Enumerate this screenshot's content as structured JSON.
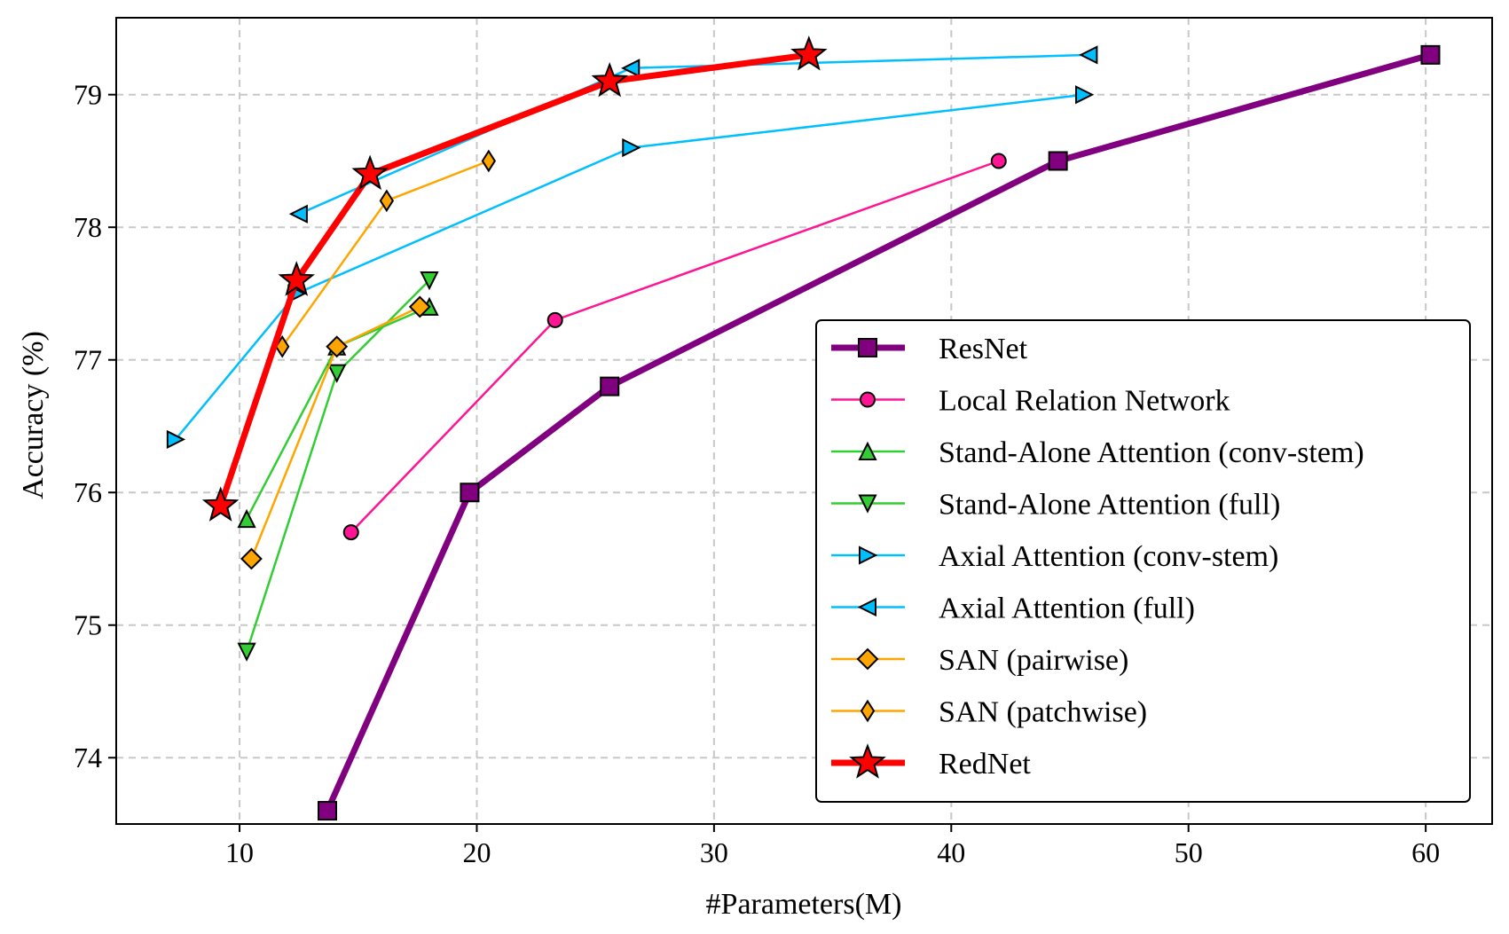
{
  "chart_data": {
    "type": "line",
    "title": "",
    "xlabel": "#Parameters(M)",
    "ylabel": "Accuracy (%)",
    "xlim": [
      4.8,
      62.8
    ],
    "ylim": [
      73.5,
      79.58
    ],
    "xticks": [
      10,
      20,
      30,
      40,
      50,
      60
    ],
    "yticks": [
      74,
      75,
      76,
      77,
      78,
      79
    ],
    "grid": true,
    "legend_position": "lower-right",
    "series": [
      {
        "name": "ResNet",
        "color": "#800080",
        "marker": "square",
        "marker_fill": "#800080",
        "line_weight": "heavy",
        "x": [
          13.7,
          19.7,
          25.6,
          44.5,
          60.2
        ],
        "y": [
          73.6,
          76.0,
          76.8,
          78.5,
          79.3
        ]
      },
      {
        "name": "Local Relation Network",
        "color": "#ff1493",
        "marker": "circle",
        "marker_fill": "#ff1493",
        "line_weight": "thin",
        "x": [
          14.7,
          23.3,
          42.0
        ],
        "y": [
          75.7,
          77.3,
          78.5
        ]
      },
      {
        "name": "Stand-Alone Attention (conv-stem)",
        "color": "#32cd32",
        "marker": "triangle-up",
        "marker_fill": "#32cd32",
        "line_weight": "thin",
        "x": [
          10.3,
          14.1,
          18.0
        ],
        "y": [
          75.8,
          77.1,
          77.4
        ]
      },
      {
        "name": "Stand-Alone Attention (full)",
        "color": "#32cd32",
        "marker": "triangle-down",
        "marker_fill": "#32cd32",
        "line_weight": "thin",
        "x": [
          10.3,
          14.1,
          18.0
        ],
        "y": [
          74.8,
          76.9,
          77.6
        ]
      },
      {
        "name": "Axial Attention (conv-stem)",
        "color": "#00bfff",
        "marker": "triangle-right",
        "marker_fill": "#00bfff",
        "line_weight": "thin",
        "x": [
          7.3,
          12.4,
          26.5,
          45.6
        ],
        "y": [
          76.4,
          77.5,
          78.6,
          79.0
        ]
      },
      {
        "name": "Axial Attention (full)",
        "color": "#00bfff",
        "marker": "triangle-left",
        "marker_fill": "#00bfff",
        "line_weight": "thin",
        "x": [
          12.5,
          26.5,
          45.8
        ],
        "y": [
          78.1,
          79.2,
          79.3
        ]
      },
      {
        "name": "SAN (pairwise)",
        "color": "#ffa500",
        "marker": "diamond",
        "marker_fill": "#ffa500",
        "line_weight": "thin",
        "x": [
          10.5,
          14.1,
          17.6
        ],
        "y": [
          75.5,
          77.1,
          77.4
        ]
      },
      {
        "name": "SAN (patchwise)",
        "color": "#ffa500",
        "marker": "thin-diamond",
        "marker_fill": "#ffa500",
        "line_weight": "thin",
        "x": [
          11.8,
          16.2,
          20.5
        ],
        "y": [
          77.1,
          78.2,
          78.5
        ]
      },
      {
        "name": "RedNet",
        "color": "#ff0000",
        "marker": "star",
        "marker_fill": "#ff0000",
        "line_weight": "heavy",
        "x": [
          9.2,
          12.4,
          15.5,
          25.6,
          34.0
        ],
        "y": [
          75.9,
          77.6,
          78.4,
          79.1,
          79.3
        ]
      }
    ]
  }
}
